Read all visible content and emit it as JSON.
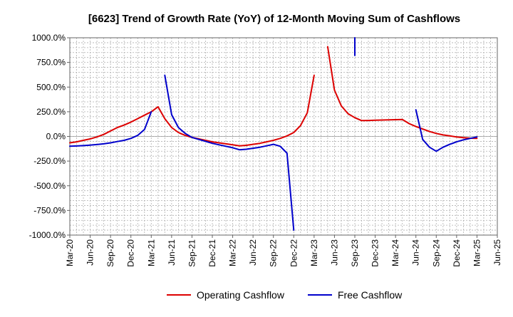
{
  "chart_data": {
    "type": "line",
    "title": "[6623]  Trend of Growth Rate (YoY) of 12-Month Moving Sum of Cashflows",
    "xlabel": "",
    "ylabel": "",
    "ylim": [
      -1000,
      1000
    ],
    "grid": true,
    "legend_placement": "bottom-center",
    "x_ticks": [
      "Mar-20",
      "Jun-20",
      "Sep-20",
      "Dec-20",
      "Mar-21",
      "Jun-21",
      "Sep-21",
      "Dec-21",
      "Mar-22",
      "Jun-22",
      "Sep-22",
      "Dec-22",
      "Mar-23",
      "Jun-23",
      "Sep-23",
      "Dec-23",
      "Mar-24",
      "Jun-24",
      "Sep-24",
      "Dec-24",
      "Mar-25",
      "Jun-25"
    ],
    "y_ticks": [
      {
        "value": 1000,
        "label": "1000.0%"
      },
      {
        "value": 750,
        "label": "750.0%"
      },
      {
        "value": 500,
        "label": "500.0%"
      },
      {
        "value": 250,
        "label": "250.0%"
      },
      {
        "value": 0,
        "label": "0.0%"
      },
      {
        "value": -250,
        "label": "-250.0%"
      },
      {
        "value": -500,
        "label": "-500.0%"
      },
      {
        "value": -750,
        "label": "-750.0%"
      },
      {
        "value": -1000,
        "label": "-1000.0%"
      }
    ],
    "series": [
      {
        "name": "Operating Cashflow",
        "color": "#dd0000",
        "points": [
          [
            "Mar-20",
            -65
          ],
          [
            "Apr-20",
            -55
          ],
          [
            "May-20",
            -40
          ],
          [
            "Jun-20",
            -25
          ],
          [
            "Jul-20",
            -5
          ],
          [
            "Aug-20",
            20
          ],
          [
            "Sep-20",
            55
          ],
          [
            "Oct-20",
            90
          ],
          [
            "Nov-20",
            115
          ],
          [
            "Dec-20",
            145
          ],
          [
            "Jan-21",
            180
          ],
          [
            "Feb-21",
            215
          ],
          [
            "Mar-21",
            250
          ],
          [
            "Apr-21",
            300
          ],
          [
            "May-21",
            180
          ],
          [
            "Jun-21",
            90
          ],
          [
            "Jul-21",
            40
          ],
          [
            "Aug-21",
            10
          ],
          [
            "Sep-21",
            -10
          ],
          [
            "Oct-21",
            -25
          ],
          [
            "Nov-21",
            -40
          ],
          [
            "Dec-21",
            -55
          ],
          [
            "Jan-22",
            -65
          ],
          [
            "Feb-22",
            -75
          ],
          [
            "Mar-22",
            -85
          ],
          [
            "Apr-22",
            -95
          ],
          [
            "May-22",
            -90
          ],
          [
            "Jun-22",
            -80
          ],
          [
            "Jul-22",
            -70
          ],
          [
            "Aug-22",
            -55
          ],
          [
            "Sep-22",
            -40
          ],
          [
            "Oct-22",
            -20
          ],
          [
            "Nov-22",
            5
          ],
          [
            "Dec-22",
            40
          ],
          [
            "Jan-23",
            110
          ],
          [
            "Feb-23",
            240
          ],
          [
            "Mar-23",
            620
          ],
          null,
          [
            "May-23",
            910
          ],
          [
            "Jun-23",
            470
          ],
          [
            "Jul-23",
            310
          ],
          [
            "Aug-23",
            230
          ],
          [
            "Sep-23",
            190
          ],
          [
            "Oct-23",
            160
          ],
          [
            "Nov-23",
            162
          ],
          [
            "Dec-23",
            164
          ],
          [
            "Jan-24",
            166
          ],
          [
            "Feb-24",
            168
          ],
          [
            "Mar-24",
            170
          ],
          [
            "Apr-24",
            172
          ],
          [
            "May-24",
            130
          ],
          [
            "Jun-24",
            100
          ],
          [
            "Jul-24",
            75
          ],
          [
            "Aug-24",
            50
          ],
          [
            "Sep-24",
            30
          ],
          [
            "Oct-24",
            15
          ],
          [
            "Nov-24",
            5
          ],
          [
            "Dec-24",
            -5
          ],
          [
            "Jan-25",
            -12
          ],
          [
            "Feb-25",
            -18
          ],
          [
            "Mar-25",
            -20
          ]
        ]
      },
      {
        "name": "Free Cashflow",
        "color": "#0000cc",
        "points": [
          [
            "Mar-20",
            -100
          ],
          [
            "Apr-20",
            -97
          ],
          [
            "May-20",
            -93
          ],
          [
            "Jun-20",
            -88
          ],
          [
            "Jul-20",
            -82
          ],
          [
            "Aug-20",
            -75
          ],
          [
            "Sep-20",
            -65
          ],
          [
            "Oct-20",
            -52
          ],
          [
            "Nov-20",
            -40
          ],
          [
            "Dec-20",
            -20
          ],
          [
            "Jan-21",
            10
          ],
          [
            "Feb-21",
            70
          ],
          [
            "Mar-21",
            250
          ],
          null,
          [
            "May-21",
            620
          ],
          [
            "Jun-21",
            220
          ],
          [
            "Jul-21",
            90
          ],
          [
            "Aug-21",
            30
          ],
          [
            "Sep-21",
            -10
          ],
          [
            "Oct-21",
            -30
          ],
          [
            "Nov-21",
            -50
          ],
          [
            "Dec-21",
            -70
          ],
          [
            "Jan-22",
            -85
          ],
          [
            "Feb-22",
            -100
          ],
          [
            "Mar-22",
            -115
          ],
          [
            "Apr-22",
            -135
          ],
          [
            "May-22",
            -130
          ],
          [
            "Jun-22",
            -120
          ],
          [
            "Jul-22",
            -110
          ],
          [
            "Aug-22",
            -95
          ],
          [
            "Sep-22",
            -80
          ],
          [
            "Oct-22",
            -100
          ],
          [
            "Nov-22",
            -170
          ],
          [
            "Dec-22",
            -950
          ],
          null,
          [
            "Sep-23",
            1000
          ],
          [
            "Sep-23",
            820
          ],
          null,
          [
            "Jun-24",
            270
          ],
          [
            "Jul-24",
            -30
          ],
          [
            "Aug-24",
            -110
          ],
          [
            "Sep-24",
            -150
          ],
          [
            "Oct-24",
            -110
          ],
          [
            "Nov-24",
            -80
          ],
          [
            "Dec-24",
            -55
          ],
          [
            "Jan-25",
            -35
          ],
          [
            "Feb-25",
            -20
          ],
          [
            "Mar-25",
            -5
          ]
        ]
      }
    ]
  }
}
